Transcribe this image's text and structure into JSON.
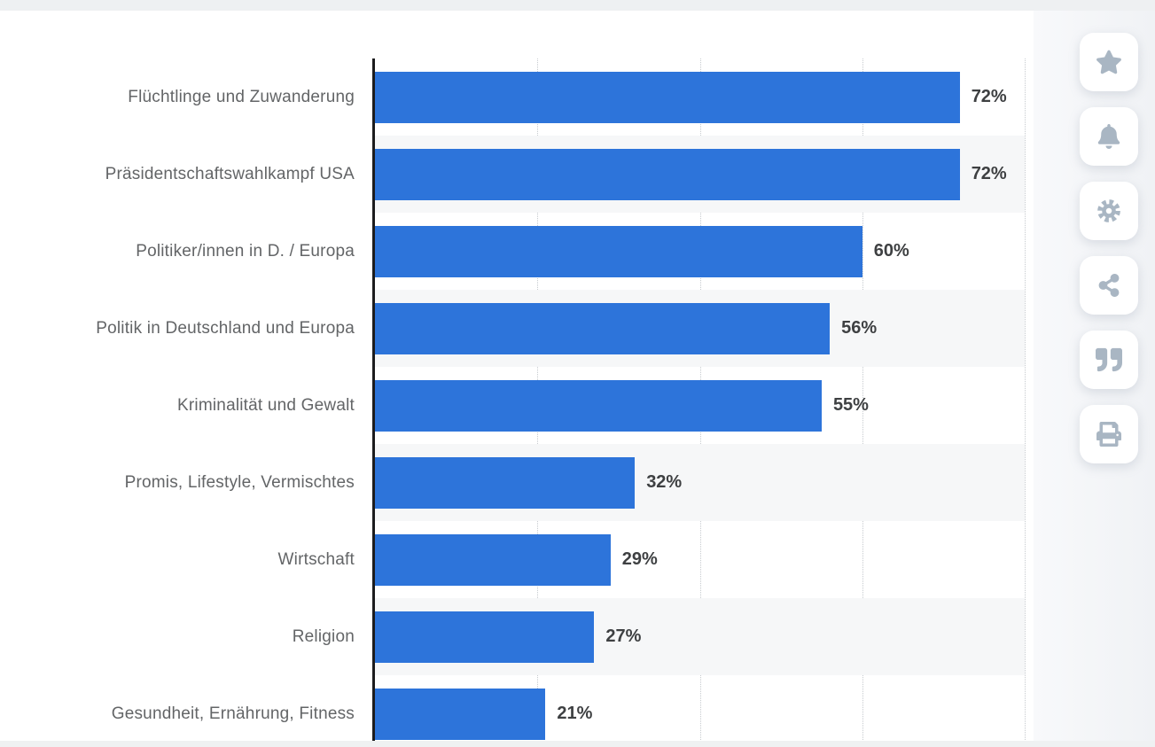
{
  "chart_data": {
    "type": "bar",
    "orientation": "horizontal",
    "title": "",
    "xlabel": "",
    "ylabel": "",
    "categories": [
      "Flüchtlinge und Zuwanderung",
      "Präsidentschaftswahlkampf USA",
      "Politiker/innen in D. / Europa",
      "Politik in Deutschland und Europa",
      "Kriminalität und Gewalt",
      "Promis, Lifestyle, Vermischtes",
      "Wirtschaft",
      "Religion",
      "Gesundheit, Ernährung, Fitness"
    ],
    "values": [
      72,
      72,
      60,
      56,
      55,
      32,
      29,
      27,
      21
    ],
    "value_labels": [
      "72%",
      "72%",
      "60%",
      "56%",
      "55%",
      "32%",
      "29%",
      "27%",
      "21%"
    ],
    "value_suffix": "%",
    "xlim": [
      0,
      80
    ],
    "gridline_values": [
      20,
      40,
      60,
      80
    ],
    "grid_style": "dotted-vertical",
    "legend": "none",
    "bar_color": "#2d74da",
    "stripe_color": "#f6f7f8",
    "axis_color": "#1c1c1e",
    "label_color": "#636567",
    "value_color": "#3e4042"
  },
  "toolbar": {
    "buttons": [
      {
        "id": "favorite",
        "icon": "star-icon"
      },
      {
        "id": "notifications",
        "icon": "bell-icon"
      },
      {
        "id": "settings",
        "icon": "gear-icon"
      },
      {
        "id": "share",
        "icon": "share-icon"
      },
      {
        "id": "cite",
        "icon": "quote-icon"
      },
      {
        "id": "print",
        "icon": "printer-icon"
      }
    ]
  },
  "page": {
    "top_strip_color": "#eef0f2",
    "bottom_strip_color": "#eff1f2",
    "side_panel_color": "#f1f3f6",
    "icon_color": "#a9b6c3"
  }
}
